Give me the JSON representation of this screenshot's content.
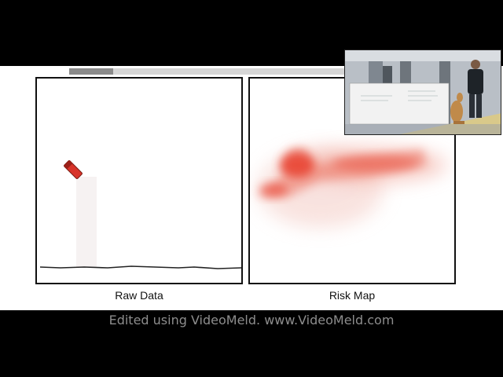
{
  "panels": {
    "raw_label": "Raw Data",
    "risk_label": "Risk Map"
  },
  "watermark": "Edited using VideoMeld.  www.VideoMeld.com",
  "video": {
    "progress_fraction": 0.16
  },
  "colors": {
    "risk_red": "#e8402f",
    "robot_red": "#d8342a",
    "line": "#222222"
  }
}
